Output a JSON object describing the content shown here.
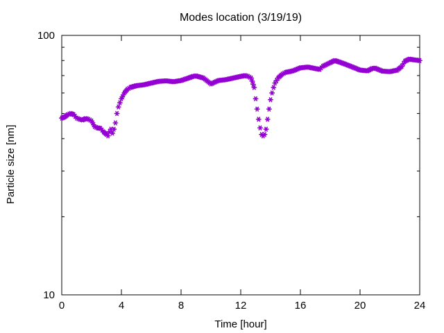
{
  "chart_data": {
    "type": "scatter",
    "title": "Modes location (3/19/19)",
    "xlabel": "Time [hour]",
    "ylabel": "Particle size [nm]",
    "xlim": [
      0,
      24
    ],
    "ylim": [
      10,
      100
    ],
    "yscale": "log",
    "grid": false,
    "legend": "none",
    "x_ticks": [
      0,
      4,
      8,
      12,
      16,
      20,
      24
    ],
    "x_tick_labels": [
      "0",
      "4",
      "8",
      "12",
      "16",
      "20",
      "24"
    ],
    "y_tick_labels": [
      "10",
      "100"
    ],
    "marker_color": "#9400d3",
    "series": [
      {
        "x": [
          0.0,
          0.2,
          0.4,
          0.6,
          0.8,
          1.0,
          1.2,
          1.4,
          1.6,
          1.8,
          2.0,
          2.2,
          2.4,
          2.6,
          2.8,
          3.0,
          3.1,
          3.2,
          3.3,
          3.4,
          3.5,
          3.6,
          3.7,
          3.8,
          3.9,
          4.0,
          4.2,
          4.4,
          4.6,
          4.8,
          5.0,
          5.5,
          6.0,
          6.5,
          7.0,
          7.5,
          8.0,
          8.5,
          8.8,
          9.0,
          9.5,
          10.0,
          10.5,
          11.0,
          11.5,
          12.0,
          12.3,
          12.5,
          12.7,
          12.9,
          13.0,
          13.1,
          13.2,
          13.3,
          13.4,
          13.5,
          13.6,
          13.7,
          13.8,
          13.9,
          14.0,
          14.1,
          14.2,
          14.3,
          14.5,
          14.8,
          15.0,
          15.5,
          16.0,
          16.5,
          17.0,
          17.3,
          17.5,
          18.0,
          18.3,
          18.6,
          19.0,
          19.5,
          20.0,
          20.5,
          20.8,
          21.0,
          21.5,
          22.0,
          22.5,
          22.8,
          23.0,
          23.3,
          23.6,
          24.0
        ],
        "y": [
          48.0,
          48.5,
          49.5,
          50.0,
          49.5,
          48.0,
          47.5,
          47.2,
          47.8,
          47.5,
          46.8,
          44.5,
          44.0,
          43.8,
          42.5,
          41.5,
          41.0,
          42.5,
          43.5,
          42.0,
          43.5,
          46.0,
          50.0,
          53.0,
          55.0,
          57.0,
          60.0,
          62.0,
          63.0,
          63.5,
          64.0,
          64.5,
          65.5,
          66.5,
          66.8,
          66.3,
          67.0,
          68.5,
          69.5,
          69.8,
          68.5,
          65.0,
          67.0,
          67.5,
          68.5,
          69.5,
          70.0,
          69.5,
          68.5,
          63.0,
          57.0,
          52.0,
          47.5,
          44.0,
          41.5,
          41.0,
          41.5,
          43.5,
          47.5,
          52.0,
          56.5,
          60.0,
          63.0,
          65.5,
          68.5,
          71.0,
          72.0,
          73.0,
          75.0,
          75.5,
          74.5,
          74.0,
          76.0,
          78.5,
          80.0,
          79.0,
          77.5,
          75.5,
          73.5,
          73.0,
          74.5,
          74.8,
          72.8,
          72.5,
          73.5,
          76.0,
          79.5,
          81.0,
          80.5,
          80.0
        ]
      }
    ]
  }
}
